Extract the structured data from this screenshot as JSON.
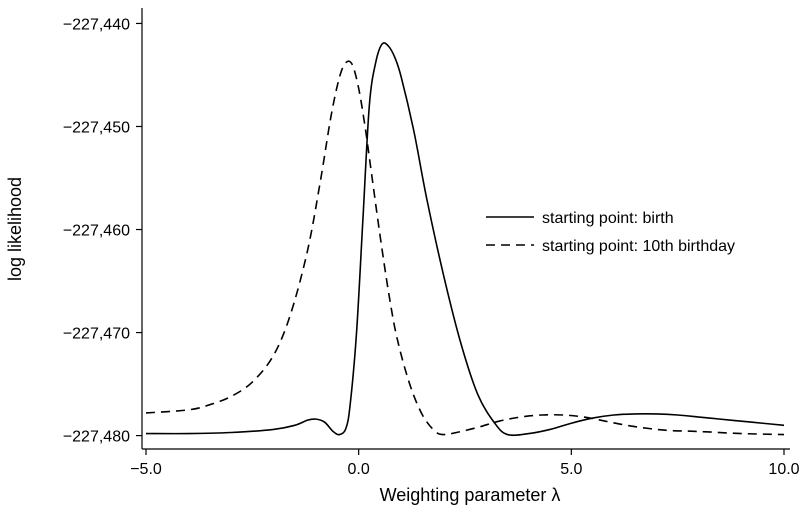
{
  "chart_data": {
    "type": "line",
    "title": "",
    "xlabel": "Weighting parameter λ",
    "ylabel": "log likelihood",
    "xlim": [
      -5.0,
      10.0
    ],
    "ylim": [
      -227481.3,
      -227438.5
    ],
    "x_ticks": [
      -5.0,
      0.0,
      5.0,
      10.0
    ],
    "x_tick_labels": [
      "−5.0",
      "0.0",
      "5.0",
      "10.0"
    ],
    "y_ticks": [
      -227440,
      -227450,
      -227460,
      -227470,
      -227480
    ],
    "y_tick_labels": [
      "−227,440",
      "−227,450",
      "−227,460",
      "−227,470",
      "−227,480"
    ],
    "grid": false,
    "legend_position": "right",
    "series": [
      {
        "name": "starting point: birth",
        "style": "solid",
        "color": "#000000",
        "points": [
          [
            -5.0,
            -227479.8
          ],
          [
            -4.0,
            -227479.8
          ],
          [
            -3.0,
            -227479.7
          ],
          [
            -2.0,
            -227479.4
          ],
          [
            -1.5,
            -227479.0
          ],
          [
            -1.2,
            -227478.5
          ],
          [
            -1.0,
            -227478.4
          ],
          [
            -0.8,
            -227478.7
          ],
          [
            -0.6,
            -227479.6
          ],
          [
            -0.45,
            -227479.9
          ],
          [
            -0.3,
            -227479.3
          ],
          [
            -0.2,
            -227477.0
          ],
          [
            -0.05,
            -227470.0
          ],
          [
            0.1,
            -227459.0
          ],
          [
            0.25,
            -227448.0
          ],
          [
            0.4,
            -227443.8
          ],
          [
            0.55,
            -227442.0
          ],
          [
            0.7,
            -227442.2
          ],
          [
            0.85,
            -227443.3
          ],
          [
            1.0,
            -227445.2
          ],
          [
            1.3,
            -227450.5
          ],
          [
            1.6,
            -227457.0
          ],
          [
            2.0,
            -227464.5
          ],
          [
            2.4,
            -227471.0
          ],
          [
            2.8,
            -227476.0
          ],
          [
            3.2,
            -227478.8
          ],
          [
            3.5,
            -227479.9
          ],
          [
            4.0,
            -227479.8
          ],
          [
            4.5,
            -227479.4
          ],
          [
            5.0,
            -227478.8
          ],
          [
            5.5,
            -227478.3
          ],
          [
            6.0,
            -227478.0
          ],
          [
            6.5,
            -227477.9
          ],
          [
            7.0,
            -227477.9
          ],
          [
            7.5,
            -227478.0
          ],
          [
            8.0,
            -227478.2
          ],
          [
            8.5,
            -227478.4
          ],
          [
            9.0,
            -227478.6
          ],
          [
            9.5,
            -227478.8
          ],
          [
            10.0,
            -227479.0
          ]
        ]
      },
      {
        "name": "starting point: 10th birthday",
        "style": "dashed",
        "color": "#000000",
        "points": [
          [
            -5.0,
            -227477.8
          ],
          [
            -4.0,
            -227477.5
          ],
          [
            -3.5,
            -227477.0
          ],
          [
            -3.0,
            -227476.2
          ],
          [
            -2.5,
            -227474.8
          ],
          [
            -2.0,
            -227472.2
          ],
          [
            -1.6,
            -227468.2
          ],
          [
            -1.2,
            -227462.0
          ],
          [
            -0.9,
            -227455.3
          ],
          [
            -0.65,
            -227449.0
          ],
          [
            -0.45,
            -227445.2
          ],
          [
            -0.3,
            -227443.8
          ],
          [
            -0.15,
            -227444.0
          ],
          [
            0.0,
            -227446.3
          ],
          [
            0.15,
            -227450.0
          ],
          [
            0.3,
            -227454.5
          ],
          [
            0.5,
            -227460.5
          ],
          [
            0.7,
            -227466.0
          ],
          [
            0.9,
            -227470.5
          ],
          [
            1.2,
            -227475.0
          ],
          [
            1.5,
            -227478.0
          ],
          [
            1.8,
            -227479.6
          ],
          [
            2.0,
            -227479.9
          ],
          [
            2.3,
            -227479.7
          ],
          [
            2.8,
            -227479.2
          ],
          [
            3.3,
            -227478.6
          ],
          [
            3.8,
            -227478.2
          ],
          [
            4.3,
            -227478.0
          ],
          [
            4.8,
            -227478.0
          ],
          [
            5.3,
            -227478.2
          ],
          [
            5.8,
            -227478.6
          ],
          [
            6.3,
            -227479.0
          ],
          [
            6.8,
            -227479.3
          ],
          [
            7.3,
            -227479.5
          ],
          [
            8.0,
            -227479.6
          ],
          [
            9.0,
            -227479.8
          ],
          [
            10.0,
            -227479.9
          ]
        ]
      }
    ]
  }
}
